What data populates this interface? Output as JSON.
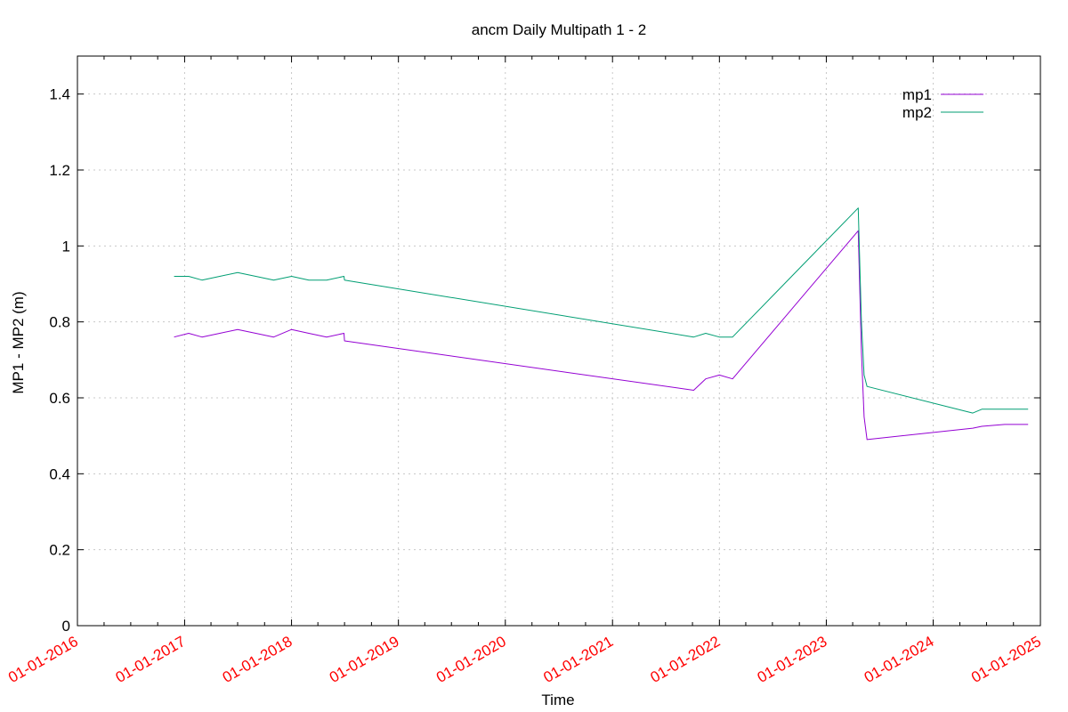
{
  "chart_data": {
    "type": "line",
    "title": "ancm Daily Multipath 1 - 2",
    "xlabel": "Time",
    "ylabel": "MP1 - MP2 (m)",
    "xlim": [
      "2016-01-01",
      "2025-01-01"
    ],
    "ylim": [
      0,
      1.5
    ],
    "y_ticks": [
      0,
      0.2,
      0.4,
      0.6,
      0.8,
      1,
      1.2,
      1.4
    ],
    "y_tick_labels": [
      "0",
      "0.2",
      "0.4",
      "0.6",
      "0.8",
      "1",
      "1.2",
      "1.4"
    ],
    "x_ticks": [
      "2016-01-01",
      "2017-01-01",
      "2018-01-01",
      "2019-01-01",
      "2020-01-01",
      "2021-01-01",
      "2022-01-01",
      "2023-01-01",
      "2024-01-01",
      "2025-01-01"
    ],
    "x_tick_labels": [
      "01-01-2016",
      "01-01-2017",
      "01-01-2018",
      "01-01-2019",
      "01-01-2020",
      "01-01-2021",
      "01-01-2022",
      "01-01-2023",
      "01-01-2024",
      "01-01-2025"
    ],
    "x_tick_color": "#ff0000",
    "grid": true,
    "legend_position": "top-right",
    "series": [
      {
        "name": "mp1",
        "color": "#9400d3",
        "points": [
          [
            "2016-11-26",
            0.76
          ],
          [
            "2017-01-15",
            0.77
          ],
          [
            "2017-03-01",
            0.76
          ],
          [
            "2017-05-01",
            0.77
          ],
          [
            "2017-07-01",
            0.78
          ],
          [
            "2017-09-01",
            0.77
          ],
          [
            "2017-11-01",
            0.76
          ],
          [
            "2018-01-01",
            0.78
          ],
          [
            "2018-03-01",
            0.77
          ],
          [
            "2018-05-01",
            0.76
          ],
          [
            "2018-06-29",
            0.77
          ],
          [
            "2018-07-01",
            0.75
          ],
          [
            "2021-10-05",
            0.62
          ],
          [
            "2021-11-15",
            0.65
          ],
          [
            "2022-01-01",
            0.66
          ],
          [
            "2022-02-15",
            0.65
          ],
          [
            "2023-04-20",
            1.04
          ],
          [
            "2023-05-01",
            0.72
          ],
          [
            "2023-05-10",
            0.55
          ],
          [
            "2023-05-20",
            0.49
          ],
          [
            "2024-05-15",
            0.52
          ],
          [
            "2024-06-15",
            0.525
          ],
          [
            "2024-09-01",
            0.53
          ],
          [
            "2024-11-20",
            0.53
          ]
        ]
      },
      {
        "name": "mp2",
        "color": "#009e73",
        "points": [
          [
            "2016-11-26",
            0.92
          ],
          [
            "2017-01-15",
            0.92
          ],
          [
            "2017-03-01",
            0.91
          ],
          [
            "2017-05-01",
            0.92
          ],
          [
            "2017-07-01",
            0.93
          ],
          [
            "2017-09-01",
            0.92
          ],
          [
            "2017-11-01",
            0.91
          ],
          [
            "2018-01-01",
            0.92
          ],
          [
            "2018-03-01",
            0.91
          ],
          [
            "2018-05-01",
            0.91
          ],
          [
            "2018-06-29",
            0.92
          ],
          [
            "2018-07-01",
            0.91
          ],
          [
            "2021-10-05",
            0.76
          ],
          [
            "2021-11-15",
            0.77
          ],
          [
            "2022-01-01",
            0.76
          ],
          [
            "2022-02-15",
            0.76
          ],
          [
            "2023-04-20",
            1.1
          ],
          [
            "2023-05-01",
            0.8
          ],
          [
            "2023-05-10",
            0.66
          ],
          [
            "2023-05-20",
            0.63
          ],
          [
            "2024-05-15",
            0.56
          ],
          [
            "2024-06-15",
            0.57
          ],
          [
            "2024-09-01",
            0.57
          ],
          [
            "2024-11-20",
            0.57
          ]
        ]
      }
    ]
  }
}
